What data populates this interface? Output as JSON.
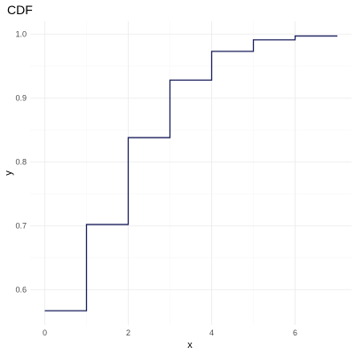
{
  "chart_data": {
    "type": "line",
    "title": "CDF",
    "xlabel": "x",
    "ylabel": "y",
    "xlim": [
      -0.35,
      7.35
    ],
    "ylim": [
      0.545,
      1.02
    ],
    "xticks": [
      0,
      2,
      4,
      6
    ],
    "yticks": [
      0.6,
      0.7,
      0.8,
      0.9,
      1.0
    ],
    "ytick_labels": [
      "0.6",
      "0.7",
      "0.8",
      "0.9",
      "1.0"
    ],
    "grid": true,
    "step": true,
    "series": [
      {
        "color": "#1a1f5c",
        "x": [
          0,
          1,
          2,
          3,
          4,
          5,
          6,
          7
        ],
        "y": [
          0.567,
          0.702,
          0.838,
          0.928,
          0.973,
          0.991,
          0.997,
          0.998
        ]
      }
    ]
  }
}
